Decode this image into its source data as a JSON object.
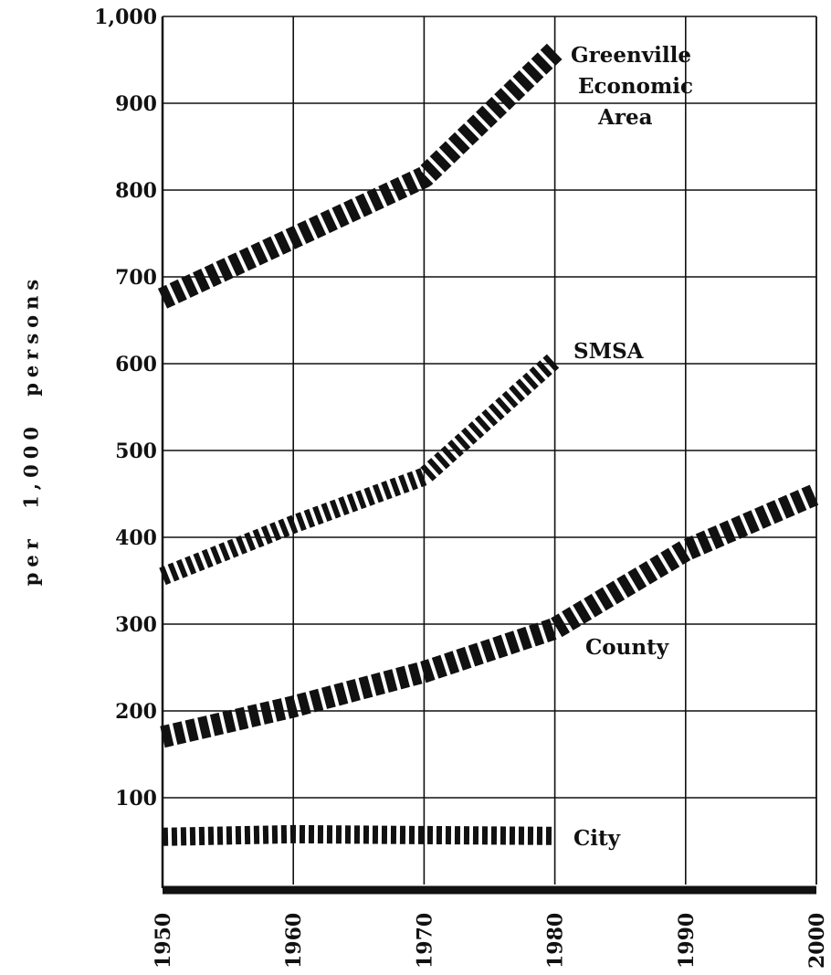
{
  "chart_data": {
    "type": "line",
    "title": "",
    "xlabel": "",
    "ylabel": "per 1,000 persons",
    "x": [
      1950,
      1960,
      1970,
      1980,
      1990,
      2000
    ],
    "x_tick_labels": [
      "1950",
      "1960",
      "1970",
      "1980",
      "1990",
      "2000"
    ],
    "y_tick_labels": [
      "1,000",
      "900",
      "800",
      "700",
      "600",
      "500",
      "400",
      "300",
      "200",
      "100"
    ],
    "y_tick_values": [
      1000,
      900,
      800,
      700,
      600,
      500,
      400,
      300,
      200,
      100
    ],
    "xlim": [
      1950,
      2000
    ],
    "ylim": [
      0,
      1000
    ],
    "grid": true,
    "series": [
      {
        "name": "Greenville Economic Area",
        "label_lines": [
          "Greenville",
          "Economic",
          "Area"
        ],
        "style": "heavy",
        "points": [
          [
            1950,
            675
          ],
          [
            1960,
            745
          ],
          [
            1970,
            815
          ],
          [
            1980,
            960
          ]
        ]
      },
      {
        "name": "SMSA",
        "label_lines": [
          "SMSA"
        ],
        "style": "medium",
        "points": [
          [
            1950,
            355
          ],
          [
            1960,
            415
          ],
          [
            1970,
            470
          ],
          [
            1980,
            605
          ]
        ]
      },
      {
        "name": "County",
        "label_lines": [
          "County"
        ],
        "style": "heavy",
        "points": [
          [
            1950,
            170
          ],
          [
            1960,
            205
          ],
          [
            1970,
            245
          ],
          [
            1980,
            295
          ],
          [
            1990,
            385
          ],
          [
            2000,
            450
          ]
        ]
      },
      {
        "name": "City",
        "label_lines": [
          "City"
        ],
        "style": "medium",
        "points": [
          [
            1950,
            55
          ],
          [
            1960,
            58
          ],
          [
            1970,
            57
          ],
          [
            1980,
            56
          ]
        ]
      }
    ]
  }
}
